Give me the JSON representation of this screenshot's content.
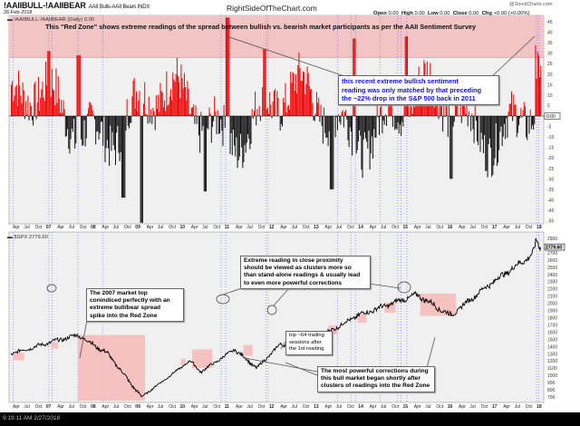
{
  "header": {
    "symbol": "!AAIIBULL-!AAIIBEAR",
    "subtitle": "AAII Bulls-AAII Bears  INDX",
    "date": "26-Feb-2018",
    "site": "RightSideOfTheChart.com",
    "watermark": "@StockCharts.com",
    "ohlc": {
      "open_label": "Open",
      "open": "0.00",
      "high_label": "High",
      "high": "0.00",
      "low_label": "Low",
      "low": "0.00",
      "close_label": "Close",
      "close": "0.00",
      "chg_label": "Chg",
      "chg": "+0.00 (+0.00%)"
    }
  },
  "top_panel": {
    "label": "!AAIIBULL-!AAIIBEAR (Daily) 0.00",
    "current_value": "0.00",
    "annotation_redzone": "This \"Red Zone\" shows extreme readings of the spread between bullish vs. bearish market participants as per the AAII Sentiment Survey",
    "annotation_blue": [
      "this recent extreme bullish sentiment",
      "reading was only matched by that preceding",
      "the ~22% drop in the S&P 500 back in 2011"
    ]
  },
  "bottom_panel": {
    "label": "$SPX 2779.60",
    "current_value": "2779.60",
    "callout_2007": [
      "The 2007 market top",
      "conindiced perfectly with an",
      "extreme bull/bear spread",
      "spike into the Red Zone"
    ],
    "callout_clusters": [
      "Extreme reading in close proximity",
      "should be viewed as clusters more so",
      "than stand-alone readings & usually lead",
      "to even more powerful corrections"
    ],
    "callout_top": [
      "top ~64 trading",
      "sessions after",
      "the 1st reading"
    ],
    "callout_corrections": [
      "The most powerful corrections during",
      "this bull market began shortly after",
      "clusters of readings into the Red Zone"
    ]
  },
  "x_axis_labels": [
    "Apr",
    "Jul",
    "Oct",
    "07",
    "Apr",
    "Jul",
    "Oct",
    "08",
    "Apr",
    "Jul",
    "Oct",
    "09",
    "Apr",
    "Jul",
    "Oct",
    "10",
    "Apr",
    "Jul",
    "Oct",
    "11",
    "Apr",
    "Jul",
    "Oct",
    "12",
    "Apr",
    "Jul",
    "Oct",
    "13",
    "Apr",
    "Jul",
    "Oct",
    "14",
    "Apr",
    "Jul",
    "Oct",
    "15",
    "Apr",
    "Jul",
    "Oct",
    "16",
    "Apr",
    "Jul",
    "Oct",
    "17",
    "Apr",
    "Jul",
    "Oct",
    "18"
  ],
  "taskbar": {
    "clock": "9:19:11 AM 2/27/2018"
  },
  "colors": {
    "red_zone": "#f2c4c4",
    "bar_pos": "#ee0000",
    "bar_neg": "#111111",
    "panel_bg": "#f0f0f0",
    "vline": "#6666ee",
    "callout_blue": "#1010e0"
  },
  "chart_data": [
    {
      "type": "bar",
      "title": "!AAIIBULL-!AAIIBEAR (Daily)",
      "ylabel": "Bull-Bear Spread",
      "y_ticks": [
        45,
        40,
        35,
        30,
        25,
        20,
        15,
        10,
        5,
        0,
        -5,
        -10,
        -15,
        -20,
        -25,
        -30,
        -35,
        -40,
        -45,
        -50
      ],
      "ylim": [
        -53,
        48
      ],
      "red_zone_threshold": 28,
      "x_range": [
        "2006-04",
        "2018-02"
      ],
      "notable_peaks": [
        {
          "date": "2007-02",
          "value": 31
        },
        {
          "date": "2007-10",
          "value": 29
        },
        {
          "date": "2011-02",
          "value": 47
        },
        {
          "date": "2011-12",
          "value": 32
        },
        {
          "date": "2013-12",
          "value": 37
        },
        {
          "date": "2015-02",
          "value": 38
        },
        {
          "date": "2018-01",
          "value": 45
        }
      ],
      "notable_troughs": [
        {
          "date": "2009-03",
          "value": -51
        },
        {
          "date": "2008-10",
          "value": -39
        },
        {
          "date": "2010-08",
          "value": -36
        },
        {
          "date": "2013-06",
          "value": -35
        },
        {
          "date": "2016-02",
          "value": -30
        }
      ],
      "current": 0.0
    },
    {
      "type": "line",
      "title": "$SPX",
      "y_ticks": [
        2900,
        2800,
        2700,
        2600,
        2500,
        2400,
        2300,
        2200,
        2100,
        2000,
        1900,
        1800,
        1700,
        1600,
        1500,
        1400,
        1300,
        1200,
        1100,
        1000,
        900,
        800,
        700
      ],
      "ylim": [
        650,
        2920
      ],
      "x": [
        "2006-04",
        "2007-02",
        "2007-10",
        "2008-06",
        "2009-03",
        "2010-04",
        "2010-07",
        "2011-04",
        "2011-10",
        "2012-04",
        "2013-01",
        "2014-01",
        "2015-05",
        "2016-02",
        "2016-12",
        "2017-12",
        "2018-01",
        "2018-02"
      ],
      "values": [
        1300,
        1450,
        1560,
        1300,
        700,
        1200,
        1050,
        1360,
        1100,
        1420,
        1480,
        1830,
        2120,
        1830,
        2250,
        2680,
        2870,
        2780
      ],
      "current": 2779.6
    }
  ]
}
